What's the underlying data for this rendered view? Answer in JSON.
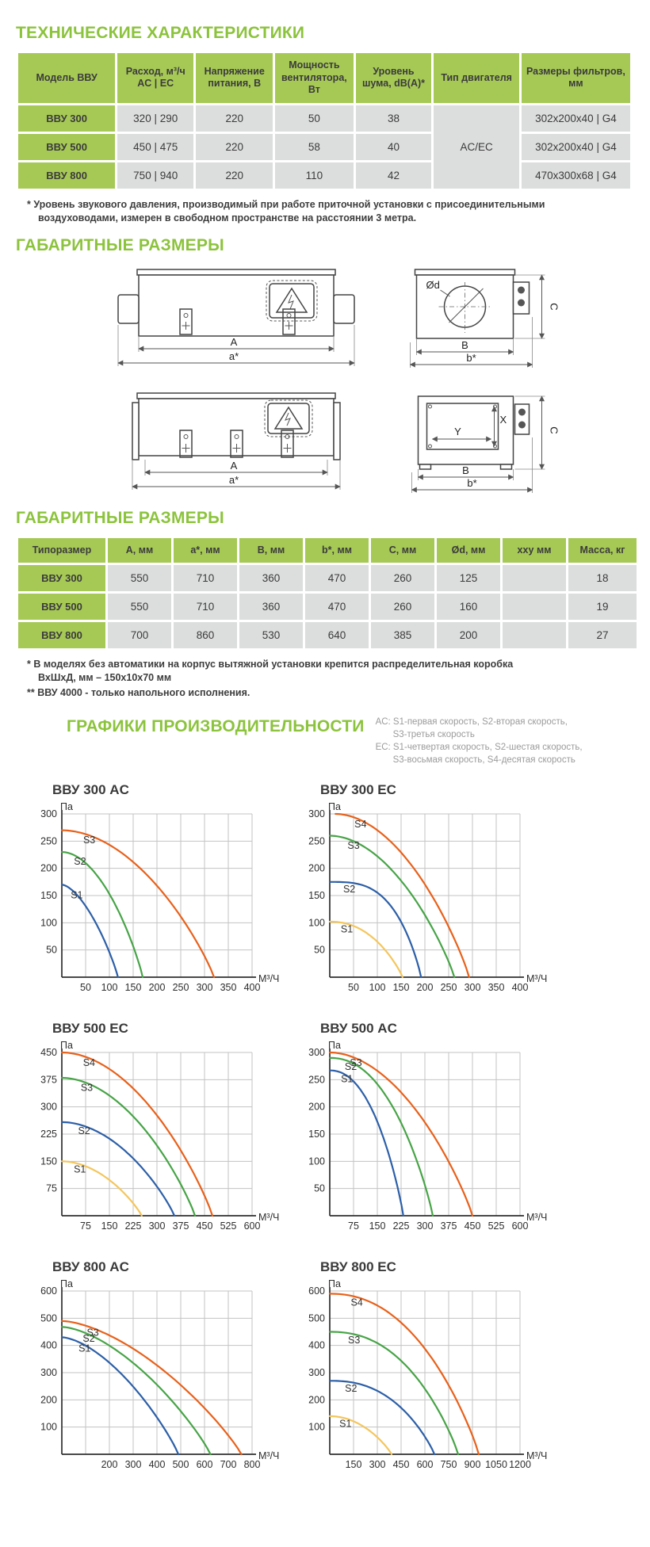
{
  "colors": {
    "accent_green": "#8cc33c",
    "table_header_green": "#a6c956",
    "cell_gray": "#dcdddd",
    "chart_orange": "#E8611B",
    "chart_green": "#47A447",
    "chart_blue": "#2C5FA8",
    "chart_yellow": "#F4C65C"
  },
  "sections": {
    "tech_title": "ТЕХНИЧЕСКИЕ ХАРАКТЕРИСТИКИ",
    "dims_title": "ГАБАРИТНЫЕ РАЗМЕРЫ",
    "dims_title2": "ГАБАРИТНЫЕ РАЗМЕРЫ",
    "charts_title": "ГРАФИКИ ПРОИЗВОДИТЕЛЬНОСТИ"
  },
  "tech_table": {
    "headers": [
      "Модель ВВУ",
      "Расход, м³/ч\nAC | EC",
      "Напряжение питания, В",
      "Мощность вентилятора, Вт",
      "Уровень шума, dB(A)*",
      "Тип двигателя",
      "Размеры фильтров, мм"
    ],
    "rows": [
      {
        "model": "ВВУ 300",
        "flow": "320 | 290",
        "voltage": "220",
        "power": "50",
        "noise": "38",
        "filter": "302x200x40 | G4"
      },
      {
        "model": "ВВУ 500",
        "flow": "450 | 475",
        "voltage": "220",
        "power": "58",
        "noise": "40",
        "filter": "302x200x40 | G4"
      },
      {
        "model": "ВВУ 800",
        "flow": "750 | 940",
        "voltage": "220",
        "power": "110",
        "noise": "42",
        "filter": "470x300x68 | G4"
      }
    ],
    "motor_type": "AC/EC",
    "footnote": "* Уровень звукового давления, производимый при работе приточной установки с присоединительными воздуховодами, измерен в свободном пространстве на расстоянии 3 метра."
  },
  "drawings": {
    "labels": {
      "A": "A",
      "a_star": "a*",
      "B": "B",
      "b_star": "b*",
      "C": "C",
      "d": "Ød",
      "X": "X",
      "Y": "Y"
    }
  },
  "dims_table": {
    "headers": [
      "Типоразмер",
      "А, мм",
      "a*, мм",
      "В, мм",
      "b*, мм",
      "С, мм",
      "Ød, мм",
      "хху мм",
      "Масса, кг"
    ],
    "rows": [
      {
        "model": "ВВУ 300",
        "a": "550",
        "a_star": "710",
        "b": "360",
        "b_star": "470",
        "c": "260",
        "d": "125",
        "xxy": "",
        "mass": "18"
      },
      {
        "model": "ВВУ 500",
        "a": "550",
        "a_star": "710",
        "b": "360",
        "b_star": "470",
        "c": "260",
        "d": "160",
        "xxy": "",
        "mass": "19"
      },
      {
        "model": "ВВУ 800",
        "a": "700",
        "a_star": "860",
        "b": "530",
        "b_star": "640",
        "c": "385",
        "d": "200",
        "xxy": "",
        "mass": "27"
      }
    ],
    "footnotes": [
      "* В моделях без автоматики на корпус вытяжной установки крепится распределительная коробка ВхШхД, мм – 150х10х70 мм",
      "** ВВУ 4000 - только напольного исполнения."
    ]
  },
  "charts_legend": {
    "lines": [
      "AC: S1-первая скорость, S2-вторая скорость,",
      "S3-третья скорость",
      "EC: S1-четвертая скорость, S2-шестая скорость,",
      "S3-восьмая скорость, S4-десятая скорость"
    ]
  },
  "chart_data": [
    {
      "type": "line",
      "title": "ВВУ 300 AC",
      "ylabel": "Па",
      "xlabel": "М³/Ч",
      "xlim": [
        0,
        400
      ],
      "ylim": [
        0,
        300
      ],
      "x_ticks": [
        50,
        100,
        150,
        200,
        250,
        300,
        350,
        400
      ],
      "y_ticks": [
        50,
        100,
        150,
        200,
        250,
        300
      ],
      "series": [
        {
          "name": "S3",
          "color": "#E8611B",
          "start_pa": 270,
          "max_flow": 320
        },
        {
          "name": "S2",
          "color": "#47A447",
          "start_pa": 230,
          "max_flow": 170
        },
        {
          "name": "S1",
          "color": "#2C5FA8",
          "start_pa": 170,
          "max_flow": 118,
          "p": 1.6
        }
      ]
    },
    {
      "type": "line",
      "title": "ВВУ 300 EC",
      "ylabel": "Па",
      "xlabel": "М³/Ч",
      "xlim": [
        0,
        400
      ],
      "ylim": [
        0,
        300
      ],
      "x_ticks": [
        50,
        100,
        150,
        200,
        250,
        300,
        350,
        400
      ],
      "y_ticks": [
        50,
        100,
        150,
        200,
        250,
        300
      ],
      "series": [
        {
          "name": "S4",
          "color": "#E8611B",
          "start_pa": 300,
          "max_flow": 293,
          "x_start": 12
        },
        {
          "name": "S3",
          "color": "#47A447",
          "start_pa": 260,
          "max_flow": 262
        },
        {
          "name": "S2",
          "color": "#2C5FA8",
          "start_pa": 175,
          "max_flow": 192,
          "p": 3.2
        },
        {
          "name": "S1",
          "color": "#F4C65C",
          "start_pa": 102,
          "max_flow": 153,
          "p": 2.2
        }
      ]
    },
    {
      "type": "line",
      "title": "ВВУ 500 EC",
      "ylabel": "Па",
      "xlabel": "М³/Ч",
      "xlim": [
        0,
        600
      ],
      "ylim": [
        0,
        450
      ],
      "x_ticks": [
        75,
        150,
        225,
        300,
        375,
        450,
        525,
        600
      ],
      "y_ticks": [
        75,
        150,
        225,
        300,
        375,
        450
      ],
      "series": [
        {
          "name": "S4",
          "color": "#E8611B",
          "start_pa": 450,
          "max_flow": 475
        },
        {
          "name": "S3",
          "color": "#47A447",
          "start_pa": 380,
          "max_flow": 420
        },
        {
          "name": "S2",
          "color": "#2C5FA8",
          "start_pa": 258,
          "max_flow": 355
        },
        {
          "name": "S1",
          "color": "#F4C65C",
          "start_pa": 150,
          "max_flow": 252
        }
      ]
    },
    {
      "type": "line",
      "title": "ВВУ 500 AC",
      "ylabel": "Па",
      "xlabel": "М³/Ч",
      "xlim": [
        0,
        600
      ],
      "ylim": [
        0,
        300
      ],
      "x_ticks": [
        75,
        150,
        225,
        300,
        375,
        450,
        525,
        600
      ],
      "y_ticks": [
        50,
        100,
        150,
        200,
        250,
        300
      ],
      "series": [
        {
          "name": "S3",
          "color": "#E8611B",
          "start_pa": 300,
          "max_flow": 450
        },
        {
          "name": "S2",
          "color": "#47A447",
          "start_pa": 290,
          "max_flow": 325,
          "p": 2.2
        },
        {
          "name": "S1",
          "color": "#2C5FA8",
          "start_pa": 267,
          "max_flow": 232,
          "p": 2.2
        }
      ]
    },
    {
      "type": "line",
      "title": "ВВУ 800 AC",
      "ylabel": "Па",
      "xlabel": "М³/Ч",
      "xlim": [
        0,
        800
      ],
      "ylim": [
        0,
        600
      ],
      "x_ticks": [
        100,
        200,
        300,
        400,
        500,
        600,
        700,
        800
      ],
      "x_tick_labels": [
        "",
        "200",
        "300",
        "400",
        "500",
        "600",
        "700",
        "800"
      ],
      "y_ticks": [
        100,
        200,
        300,
        400,
        500,
        600
      ],
      "series": [
        {
          "name": "S3",
          "color": "#E8611B",
          "start_pa": 490,
          "max_flow": 755,
          "p": 1.6
        },
        {
          "name": "S2",
          "color": "#47A447",
          "start_pa": 468,
          "max_flow": 625,
          "p": 1.6
        },
        {
          "name": "S1",
          "color": "#2C5FA8",
          "start_pa": 430,
          "max_flow": 490,
          "p": 1.6
        }
      ]
    },
    {
      "type": "line",
      "title": "ВВУ 800 EC",
      "ylabel": "Па",
      "xlabel": "М³/Ч",
      "xlim": [
        0,
        1200
      ],
      "ylim": [
        0,
        600
      ],
      "x_ticks": [
        150,
        300,
        450,
        600,
        750,
        900,
        1050,
        1200
      ],
      "y_ticks": [
        100,
        200,
        300,
        400,
        500,
        600
      ],
      "series": [
        {
          "name": "S4",
          "color": "#E8611B",
          "start_pa": 590,
          "max_flow": 940,
          "p": 2.2
        },
        {
          "name": "S3",
          "color": "#47A447",
          "start_pa": 450,
          "max_flow": 810,
          "p": 2.3
        },
        {
          "name": "S2",
          "color": "#2C5FA8",
          "start_pa": 270,
          "max_flow": 660,
          "p": 2.4
        },
        {
          "name": "S1",
          "color": "#F4C65C",
          "start_pa": 140,
          "max_flow": 390,
          "p": 2.0
        }
      ]
    }
  ]
}
